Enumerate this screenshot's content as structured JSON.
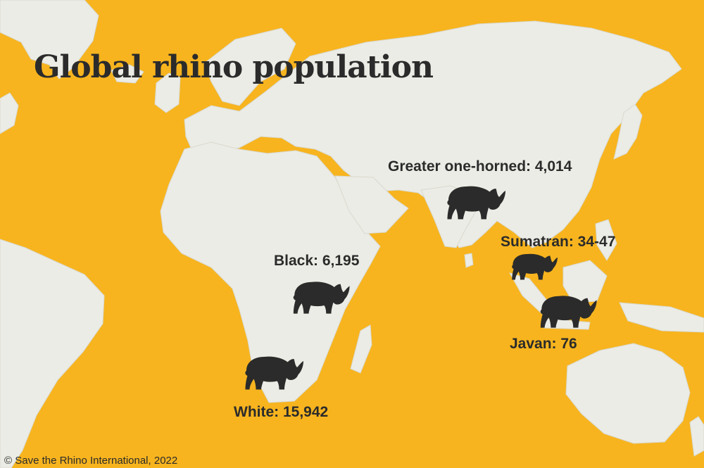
{
  "title": "Global rhino population",
  "colors": {
    "ocean": "#f7b41e",
    "land": "#ecece6",
    "border": "#d9d9cf",
    "rhino": "#2b2b2b",
    "text": "#2b2b2b"
  },
  "species": [
    {
      "label": "Greater one-horned: 4,014",
      "icon": "greater-one-horned-rhino-icon"
    },
    {
      "label": "Sumatran: 34-47",
      "icon": "sumatran-rhino-icon"
    },
    {
      "label": "Black: 6,195",
      "icon": "black-rhino-icon"
    },
    {
      "label": "Javan: 76",
      "icon": "javan-rhino-icon"
    },
    {
      "label": "White: 15,942",
      "icon": "white-rhino-icon"
    }
  ],
  "credit": "© Save the Rhino International, 2022"
}
